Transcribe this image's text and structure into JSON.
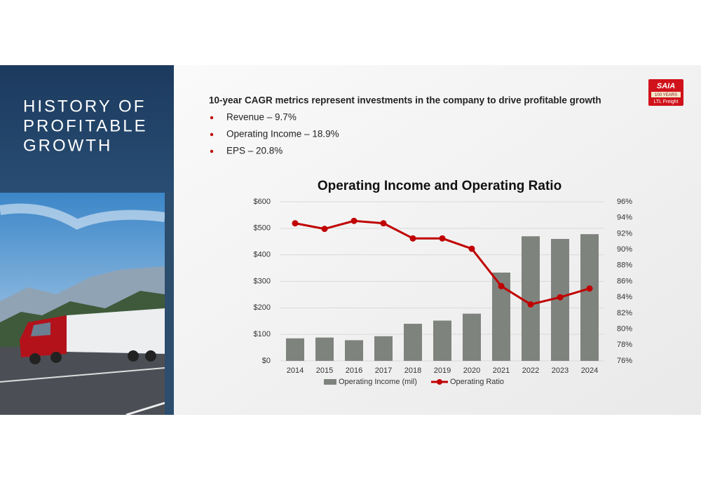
{
  "slide": {
    "title": [
      "HISTORY OF",
      "PROFITABLE",
      "GROWTH"
    ],
    "heading": "10-year CAGR metrics represent investments in the company to drive profitable growth",
    "bullets": [
      "Revenue – 9.7%",
      "Operating Income – 18.9%",
      "EPS – 20.8%"
    ],
    "logo": {
      "brand": "SAIA",
      "years": "100 YEARS",
      "tagline": "LTL Freight"
    }
  },
  "chart_data": {
    "type": "bar",
    "title": "Operating Income and Operating Ratio",
    "categories": [
      "2014",
      "2015",
      "2016",
      "2017",
      "2018",
      "2019",
      "2020",
      "2021",
      "2022",
      "2023",
      "2024"
    ],
    "series": [
      {
        "name": "Operating Income (mil)",
        "color": "#7f837d",
        "values": [
          85,
          88,
          78,
          93,
          140,
          152,
          178,
          333,
          470,
          460,
          478
        ]
      },
      {
        "name": "Operating Ratio",
        "color": "#c00000",
        "type": "line",
        "axis": "y2",
        "values": [
          93.3,
          92.6,
          93.6,
          93.3,
          91.4,
          91.4,
          90.1,
          85.4,
          83.1,
          84.0,
          85.1
        ]
      }
    ],
    "ylim": [
      0,
      600
    ],
    "yticks": [
      {
        "value": 0,
        "label": "$0"
      },
      {
        "value": 100,
        "label": "$100"
      },
      {
        "value": 200,
        "label": "$200"
      },
      {
        "value": 300,
        "label": "$300"
      },
      {
        "value": 400,
        "label": "$400"
      },
      {
        "value": 500,
        "label": "$500"
      },
      {
        "value": 600,
        "label": "$600"
      }
    ],
    "y2lim": [
      76,
      96
    ],
    "y2ticks": [
      {
        "value": 76,
        "label": "76%"
      },
      {
        "value": 78,
        "label": "78%"
      },
      {
        "value": 80,
        "label": "80%"
      },
      {
        "value": 82,
        "label": "82%"
      },
      {
        "value": 84,
        "label": "84%"
      },
      {
        "value": 86,
        "label": "86%"
      },
      {
        "value": 88,
        "label": "88%"
      },
      {
        "value": 90,
        "label": "90%"
      },
      {
        "value": 92,
        "label": "92%"
      },
      {
        "value": 94,
        "label": "94%"
      },
      {
        "value": 96,
        "label": "96%"
      }
    ],
    "grid": true,
    "legend": "bottom"
  }
}
